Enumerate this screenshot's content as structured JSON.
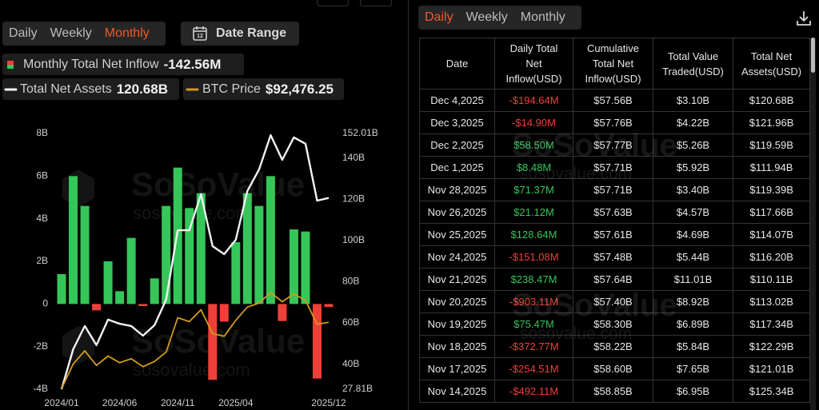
{
  "ui": {
    "tabs": [
      "Daily",
      "Weekly",
      "Monthly"
    ],
    "active_tab": 2,
    "date_range": "Date Range",
    "active_color": "#f05a28"
  },
  "watermark": {
    "name": "SoSoValue",
    "url": "sosovalue.com"
  },
  "chart_data": {
    "type": "bar",
    "categories": [
      "2024/01",
      null,
      null,
      null,
      null,
      "2024/06",
      null,
      null,
      null,
      null,
      "2024/11",
      null,
      null,
      null,
      null,
      "2025/04",
      null,
      null,
      null,
      null,
      null,
      null,
      null,
      "2025/12"
    ],
    "series": [
      {
        "name": "Monthly Total Net Inflow",
        "type": "bar",
        "color": "#35c659",
        "negative_color": "#ee4038",
        "value_label": "-142.56M",
        "values": [
          1.4,
          6.0,
          4.6,
          -0.3,
          2.0,
          0.6,
          3.1,
          -0.1,
          1.2,
          4.6,
          6.4,
          4.5,
          5.2,
          -3.56,
          -0.83,
          2.9,
          5.2,
          4.6,
          6.0,
          -0.8,
          3.5,
          3.4,
          -3.5,
          -0.14256
        ]
      },
      {
        "name": "Total Net Assets",
        "type": "line",
        "axis": "y2",
        "color": "#f2f2f2",
        "value_label": "120.68B",
        "values": [
          27.81,
          47.2,
          58.5,
          49.2,
          61.6,
          59.6,
          58.5,
          53.8,
          58.9,
          71.3,
          105.0,
          105.0,
          122.5,
          97.3,
          93.4,
          100.4,
          124.1,
          134.5,
          151.2,
          139.2,
          150.1,
          147.0,
          119.4,
          120.68
        ]
      },
      {
        "name": "BTC Price",
        "type": "line",
        "axis": "y3",
        "color": "#d49a1c",
        "value_label": "$92,476.25",
        "values": [
          42500,
          61000,
          71000,
          60000,
          67000,
          62000,
          65000,
          59000,
          63000,
          70000,
          96000,
          93000,
          102000,
          84000,
          82000,
          94000,
          104000,
          107000,
          115000,
          108000,
          114000,
          109000,
          91000,
          92476.25
        ]
      }
    ],
    "ylim": [
      -4,
      8
    ],
    "yticks": [
      {
        "value": -4,
        "label": "-4B"
      },
      {
        "value": -2,
        "label": "-2B"
      },
      0,
      {
        "value": 2,
        "label": "2B"
      },
      {
        "value": 4,
        "label": "4B"
      },
      {
        "value": 6,
        "label": "6B"
      },
      {
        "value": 8,
        "label": "8B"
      }
    ],
    "y2lim": [
      27.81,
      152.01
    ],
    "y2ticks": [
      {
        "value": 27.81,
        "label": "27.81B"
      },
      {
        "value": 40,
        "label": "40B"
      },
      {
        "value": 60,
        "label": "60B"
      },
      {
        "value": 80,
        "label": "80B"
      },
      {
        "value": 100,
        "label": "100B"
      },
      {
        "value": 120,
        "label": "120B"
      },
      {
        "value": 140,
        "label": "140B"
      },
      {
        "value": 152.01,
        "label": "152.01B"
      }
    ],
    "y3lim": [
      42000,
      235000
    ]
  },
  "table": {
    "tabs": [
      "Daily",
      "Weekly",
      "Monthly"
    ],
    "active_tab": 0,
    "columns": [
      "Date",
      "Daily Total Net Inflow(USD)",
      "Cumulative Total Net Inflow(USD)",
      "Total Value Traded(USD)",
      "Total Net Assets(USD)"
    ],
    "rows": [
      [
        "Dec 4,2025",
        "-$194.64M",
        "$57.56B",
        "$3.10B",
        "$120.68B"
      ],
      [
        "Dec 3,2025",
        "-$14.90M",
        "$57.76B",
        "$4.22B",
        "$121.96B"
      ],
      [
        "Dec 2,2025",
        "$58.50M",
        "$57.77B",
        "$5.26B",
        "$119.59B"
      ],
      [
        "Dec 1,2025",
        "$8.48M",
        "$57.71B",
        "$5.92B",
        "$111.94B"
      ],
      [
        "Nov 28,2025",
        "$71.37M",
        "$57.71B",
        "$3.40B",
        "$119.39B"
      ],
      [
        "Nov 26,2025",
        "$21.12M",
        "$57.63B",
        "$4.57B",
        "$117.66B"
      ],
      [
        "Nov 25,2025",
        "$128.64M",
        "$57.61B",
        "$4.69B",
        "$114.07B"
      ],
      [
        "Nov 24,2025",
        "-$151.08M",
        "$57.48B",
        "$5.44B",
        "$116.20B"
      ],
      [
        "Nov 21,2025",
        "$238.47M",
        "$57.64B",
        "$11.01B",
        "$110.11B"
      ],
      [
        "Nov 20,2025",
        "-$903.11M",
        "$57.40B",
        "$8.92B",
        "$113.02B"
      ],
      [
        "Nov 19,2025",
        "$75.47M",
        "$58.30B",
        "$6.89B",
        "$117.34B"
      ],
      [
        "Nov 18,2025",
        "-$372.77M",
        "$58.22B",
        "$5.84B",
        "$122.29B"
      ],
      [
        "Nov 17,2025",
        "-$254.51M",
        "$58.60B",
        "$7.65B",
        "$121.01B"
      ],
      [
        "Nov 14,2025",
        "-$492.11M",
        "$58.85B",
        "$6.95B",
        "$125.34B"
      ]
    ]
  }
}
